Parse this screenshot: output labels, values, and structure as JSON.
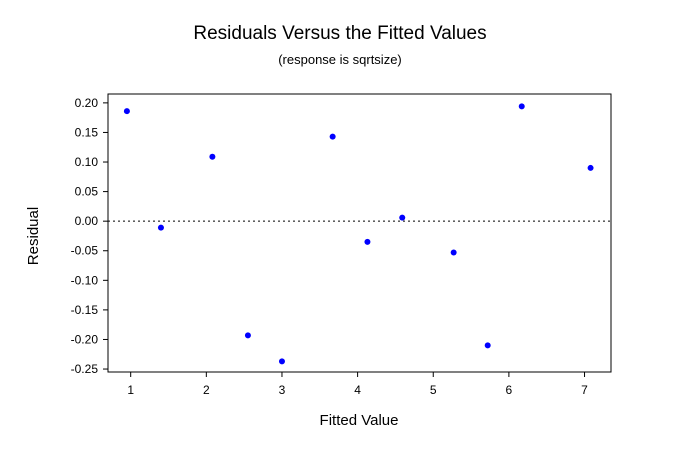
{
  "chart_data": {
    "type": "scatter",
    "title": "Residuals Versus the Fitted Values",
    "subtitle": "(response is sqrtsize)",
    "xlabel": "Fitted Value",
    "ylabel": "Residual",
    "xlim": [
      0.7,
      7.35
    ],
    "ylim": [
      -0.255,
      0.215
    ],
    "xticks": [
      1,
      2,
      3,
      4,
      5,
      6,
      7
    ],
    "xtick_labels": [
      "1",
      "2",
      "3",
      "4",
      "5",
      "6",
      "7"
    ],
    "yticks": [
      0.2,
      0.15,
      0.1,
      0.05,
      0.0,
      -0.05,
      -0.1,
      -0.15,
      -0.2,
      -0.25
    ],
    "ytick_labels": [
      "0.20",
      "0.15",
      "0.10",
      "0.05",
      "0.00",
      "-0.05",
      "-0.10",
      "-0.15",
      "-0.20",
      "-0.25"
    ],
    "reference_line": {
      "y": 0.0,
      "style": "dotted"
    },
    "grid": false,
    "point_color": "#0000ff",
    "points": [
      {
        "x": 0.95,
        "y": 0.186
      },
      {
        "x": 1.4,
        "y": -0.011
      },
      {
        "x": 2.08,
        "y": 0.109
      },
      {
        "x": 2.55,
        "y": -0.193
      },
      {
        "x": 3.0,
        "y": -0.237
      },
      {
        "x": 3.67,
        "y": 0.143
      },
      {
        "x": 4.13,
        "y": -0.035
      },
      {
        "x": 4.59,
        "y": 0.006
      },
      {
        "x": 5.27,
        "y": -0.053
      },
      {
        "x": 5.72,
        "y": -0.21
      },
      {
        "x": 6.17,
        "y": 0.194
      },
      {
        "x": 7.08,
        "y": 0.09
      }
    ]
  }
}
